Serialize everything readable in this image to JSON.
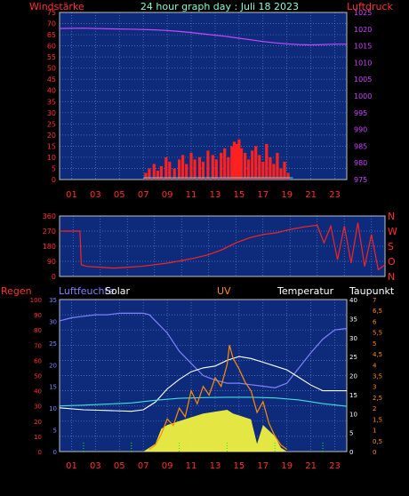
{
  "header": {
    "left_label": "Windstärke",
    "title": "24 hour graph day : Juli 18 2023",
    "right_label": "Luftdruck"
  },
  "panel3_labels": {
    "regen": "Regen",
    "luftfeuchte": "Luftfeuchte",
    "solar": "Solar",
    "uv": "UV",
    "temperatur": "Temperatur",
    "taupunkt": "Taupunkt"
  },
  "colors": {
    "background": "#000000",
    "plot_bg": "#0d2b7a",
    "grid": "#5e7fc4",
    "axis_red": "#ff3030",
    "title_cyan": "#7fffd4",
    "pressure": "#cc44ff",
    "wind": "#ff2020",
    "gust_line": "#3fe0ff",
    "direction": "#ff2020",
    "humidity": "#8080ff",
    "solar_fill": "#f0f040",
    "uv": "#ff8c00",
    "temperature": "#ffffff",
    "dewpoint": "#40e0e0",
    "rain": "#00ff00"
  },
  "chart_data": [
    {
      "id": "wind-pressure",
      "type": "bar",
      "x_ticks": [
        "01",
        "03",
        "05",
        "07",
        "09",
        "11",
        "13",
        "15",
        "17",
        "19",
        "21",
        "23"
      ],
      "x_range": [
        0,
        24
      ],
      "left_axis": {
        "label": "Windstärke",
        "range": [
          0,
          75
        ],
        "ticks": [
          0,
          5,
          10,
          15,
          20,
          25,
          30,
          35,
          40,
          45,
          50,
          55,
          60,
          65,
          70,
          75
        ]
      },
      "right_axis": {
        "label": "Luftdruck",
        "range": [
          975,
          1025
        ],
        "ticks": [
          975,
          980,
          985,
          990,
          995,
          1000,
          1005,
          1010,
          1015,
          1020,
          1025
        ]
      },
      "pressure": {
        "x": [
          0,
          2,
          4,
          6,
          8,
          9,
          10,
          11,
          12,
          13,
          14,
          15,
          16,
          17,
          18,
          19,
          20,
          21,
          22,
          23,
          24
        ],
        "y": [
          1020.2,
          1020.3,
          1020.1,
          1020.0,
          1019.8,
          1019.6,
          1019.3,
          1019.0,
          1018.6,
          1018.2,
          1017.8,
          1017.3,
          1016.8,
          1016.3,
          1015.9,
          1015.6,
          1015.4,
          1015.3,
          1015.4,
          1015.5,
          1015.5
        ]
      },
      "wind": {
        "x": [
          7.2,
          7.5,
          7.9,
          8.2,
          8.5,
          8.9,
          9.2,
          9.6,
          10.0,
          10.3,
          10.6,
          11.0,
          11.3,
          11.7,
          12.0,
          12.4,
          12.8,
          13.1,
          13.5,
          13.8,
          14.1,
          14.4,
          14.6,
          14.8,
          15.0,
          15.2,
          15.5,
          15.8,
          16.1,
          16.4,
          16.7,
          17.0,
          17.3,
          17.6,
          17.9,
          18.2,
          18.5,
          18.8,
          19.1
        ],
        "y": [
          3,
          5,
          7,
          4,
          6,
          10,
          8,
          5,
          9,
          11,
          7,
          12,
          9,
          10,
          8,
          13,
          11,
          9,
          12,
          14,
          10,
          15,
          17,
          16,
          18,
          14,
          12,
          9,
          13,
          15,
          11,
          8,
          16,
          10,
          7,
          12,
          5,
          8,
          3
        ]
      }
    },
    {
      "id": "wind-direction",
      "type": "line",
      "x_range": [
        0,
        24
      ],
      "left_axis": {
        "range": [
          0,
          360
        ],
        "ticks": [
          0,
          90,
          180,
          270,
          360
        ]
      },
      "right_axis": {
        "ticks": [
          "N",
          "O",
          "S",
          "W",
          "N"
        ]
      },
      "direction": {
        "x": [
          0,
          1.5,
          1.6,
          2,
          3,
          4,
          5,
          6,
          7,
          8,
          9,
          10,
          11,
          12,
          13,
          14,
          15,
          16,
          17,
          18,
          19,
          19.5,
          20,
          20.5,
          21,
          21.5,
          22,
          22.5,
          23,
          23.5,
          24
        ],
        "y": [
          270,
          270,
          70,
          60,
          55,
          50,
          55,
          60,
          70,
          80,
          95,
          110,
          130,
          160,
          200,
          230,
          250,
          260,
          280,
          295,
          305,
          200,
          300,
          100,
          300,
          80,
          320,
          60,
          250,
          40,
          70
        ]
      }
    },
    {
      "id": "rain-humidity-solar-uv-temp",
      "type": "area",
      "x_range": [
        0,
        24
      ],
      "axes": {
        "regen": {
          "label": "Regen",
          "range": [
            0,
            100
          ],
          "ticks": [
            0,
            10,
            20,
            30,
            40,
            50,
            60,
            70,
            80,
            90,
            100
          ]
        },
        "luftfeuchte": {
          "label": "Luftfeuchte",
          "range": [
            0,
            35
          ],
          "ticks": [
            0,
            5,
            10,
            15,
            20,
            25,
            30,
            35
          ]
        },
        "temperatur": {
          "label": "Temperatur",
          "range": [
            0,
            40
          ],
          "ticks": [
            0,
            5,
            10,
            15,
            20,
            25,
            30,
            35,
            40
          ]
        },
        "uv": {
          "label": "UV",
          "range": [
            0,
            7
          ],
          "ticks": [
            "0",
            "0,5",
            "1",
            "1,5",
            "2",
            "2,5",
            "3",
            "3,5",
            "4",
            "4,5",
            "5",
            "5,5",
            "6",
            "6,5",
            "7"
          ]
        }
      },
      "humidity": {
        "x": [
          0,
          1,
          2,
          3,
          4,
          5,
          6,
          7,
          7.5,
          8,
          9,
          10,
          11,
          12,
          13,
          14,
          15,
          16,
          17,
          18,
          19,
          20,
          21,
          22,
          23,
          24
        ],
        "y": [
          86,
          88,
          89,
          90,
          90,
          91,
          91,
          91,
          90,
          86,
          78,
          66,
          58,
          50,
          47,
          45,
          45,
          44,
          43,
          42,
          45,
          55,
          65,
          74,
          80,
          81
        ]
      },
      "temperature": {
        "x": [
          0,
          2,
          4,
          6,
          7,
          8,
          9,
          10,
          11,
          12,
          13,
          14,
          15,
          16,
          17,
          18,
          19,
          20,
          21,
          22,
          23,
          24
        ],
        "y": [
          11.5,
          11,
          10.8,
          10.6,
          11,
          13,
          16.5,
          19,
          21,
          22,
          22.5,
          24,
          25,
          24.5,
          23.5,
          22.5,
          21.5,
          19.5,
          17.5,
          16,
          16,
          16
        ]
      },
      "dewpoint": {
        "x": [
          0,
          2,
          4,
          6,
          8,
          10,
          12,
          14,
          16,
          18,
          20,
          22,
          24
        ],
        "y": [
          12,
          12.2,
          12.5,
          12.8,
          13.5,
          14,
          14.2,
          14.3,
          14.3,
          14.1,
          13.6,
          12.6,
          11.9
        ]
      },
      "solar": {
        "x": [
          7,
          8,
          8.5,
          9,
          10,
          11,
          12,
          13,
          14,
          14.5,
          15,
          16,
          16.5,
          17,
          18,
          18.5,
          19
        ],
        "y": [
          0,
          2,
          6,
          7,
          8,
          9,
          10,
          10.5,
          11,
          10,
          9.5,
          8.5,
          2,
          7,
          4,
          1,
          0
        ]
      },
      "uv": {
        "x": [
          7.5,
          8,
          8.5,
          9,
          9.5,
          10,
          10.5,
          11,
          11.5,
          12,
          12.5,
          13,
          13.5,
          14,
          14.2,
          14.5,
          15,
          15.5,
          16,
          16.5,
          17,
          17.5,
          18,
          18.5,
          19
        ],
        "y": [
          0.1,
          0.3,
          0.8,
          1.5,
          1.2,
          2.0,
          1.6,
          2.8,
          2.2,
          3.0,
          2.6,
          3.4,
          3.0,
          4.0,
          4.9,
          4.3,
          3.8,
          3.2,
          2.8,
          1.8,
          2.3,
          1.3,
          0.7,
          0.3,
          0.1
        ]
      },
      "rain": {
        "x": [
          2,
          6,
          10,
          14,
          18,
          22
        ],
        "y": [
          0,
          0,
          0,
          0,
          0,
          0
        ]
      }
    }
  ]
}
